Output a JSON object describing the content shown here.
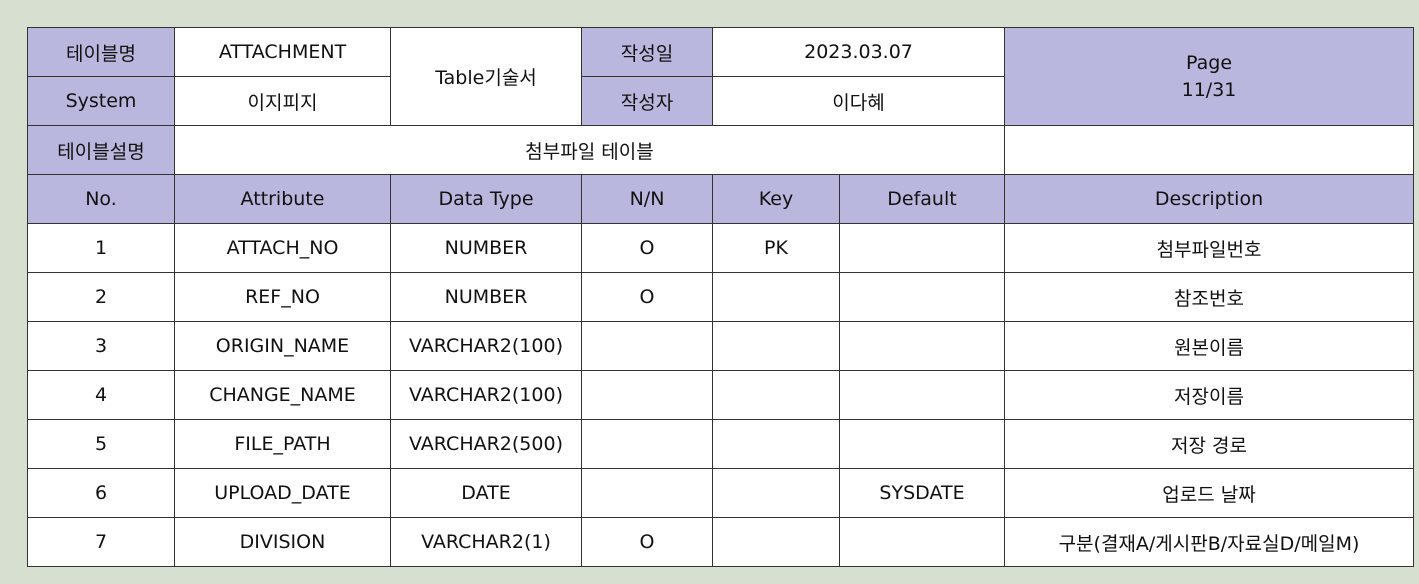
{
  "header": {
    "table_name_label": "테이블명",
    "table_name": "ATTACHMENT",
    "doc_title": "Table기술서",
    "created_date_label": "작성일",
    "created_date": "2023.03.07",
    "page_label": "Page",
    "page_value": "11/31",
    "system_label": "System",
    "system_value": "이지피지",
    "author_label": "작성자",
    "author": "이다혜",
    "description_label": "테이블설명",
    "description": "첨부파일 테이블"
  },
  "columns": [
    "No.",
    "Attribute",
    "Data Type",
    "N/N",
    "Key",
    "Default",
    "Description"
  ],
  "rows": [
    {
      "no": "1",
      "attribute": "ATTACH_NO",
      "type": "NUMBER",
      "nn": "O",
      "key": "PK",
      "default": "",
      "desc": "첨부파일번호"
    },
    {
      "no": "2",
      "attribute": "REF_NO",
      "type": "NUMBER",
      "nn": "O",
      "key": "",
      "default": "",
      "desc": "참조번호"
    },
    {
      "no": "3",
      "attribute": "ORIGIN_NAME",
      "type": "VARCHAR2(100)",
      "nn": "",
      "key": "",
      "default": "",
      "desc": "원본이름"
    },
    {
      "no": "4",
      "attribute": "CHANGE_NAME",
      "type": "VARCHAR2(100)",
      "nn": "",
      "key": "",
      "default": "",
      "desc": "저장이름"
    },
    {
      "no": "5",
      "attribute": "FILE_PATH",
      "type": "VARCHAR2(500)",
      "nn": "",
      "key": "",
      "default": "",
      "desc": "저장 경로"
    },
    {
      "no": "6",
      "attribute": "UPLOAD_DATE",
      "type": "DATE",
      "nn": "",
      "key": "",
      "default": "SYSDATE",
      "desc": "업로드 날짜"
    },
    {
      "no": "7",
      "attribute": "DIVISION",
      "type": "VARCHAR2(1)",
      "nn": "O",
      "key": "",
      "default": "",
      "desc": "구분(결재A/게시판B/자료실D/메일M)"
    }
  ],
  "colors": {
    "header_fill": "#b9b7dd",
    "page_background": "#d7dfd1",
    "border": "#333333"
  }
}
